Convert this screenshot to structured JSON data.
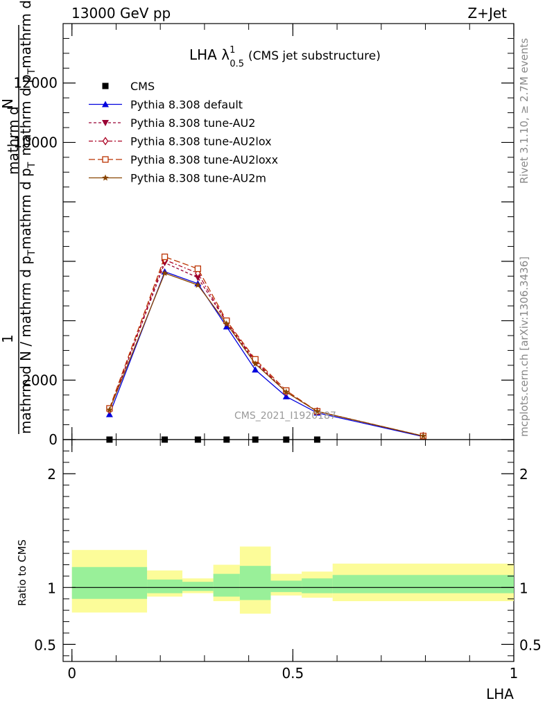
{
  "header": {
    "left": "13000 GeV pp",
    "right": "Z+Jet"
  },
  "side_labels": {
    "rivet": "Rivet 3.1.10, ≥ 2.7M events",
    "mcplots": "mcplots.cern.ch [arXiv:1306.3436]"
  },
  "watermark": "CMS_2021_I1920187",
  "title": {
    "main": "LHA λ",
    "sup": "1",
    "sub": "0.5",
    "paren": "(CMS jet substructure)"
  },
  "ylabel": {
    "one": "1",
    "numerator_a": "mathrm d",
    "numerator_b": "N",
    "left_col_1": "mathrm d N / mathrm d p",
    "left_col_1_sub": "T",
    "left_col_2": "mathrm d p",
    "left_col_2_sub": "T",
    "right_col": "mathrm d p",
    "right_col_sub": "T",
    "right_col_tail": "mathrm d \\lambda"
  },
  "ratio_ylabel": "Ratio to CMS",
  "xlabel": "LHA",
  "colors": {
    "default": "#0000dd",
    "au2": "#990033",
    "au2lox": "#aa0022",
    "au2loxx": "#bb3300",
    "au2m": "#884400",
    "band_inner": "#99f099",
    "band_outer": "#fcfc99"
  },
  "chart_data": [
    {
      "type": "line",
      "panel": "main",
      "x_ticks": [
        0,
        0.5,
        1
      ],
      "y_ticks": [
        0,
        2000,
        4000,
        6000,
        8000,
        10000,
        12000
      ],
      "y_tick_labels": [
        "0",
        "2000",
        "",
        "",
        "",
        "10000",
        "12000"
      ],
      "xlim": [
        -0.02,
        1.0
      ],
      "ylim": [
        0,
        14000
      ],
      "legend_position": "top-left",
      "series": [
        {
          "name": "CMS",
          "marker": "square",
          "color": "#000000",
          "x": [
            0.085,
            0.21,
            0.285,
            0.35,
            0.415,
            0.485,
            0.555
          ],
          "y": [
            0,
            0,
            0,
            0,
            0,
            0,
            0
          ]
        },
        {
          "name": "Pythia 8.308 default",
          "marker": "triangle-up",
          "style": "solid",
          "color": "#0000dd",
          "x": [
            0.085,
            0.21,
            0.285,
            0.35,
            0.415,
            0.485,
            0.555,
            0.795
          ],
          "y": [
            850,
            5650,
            5250,
            3800,
            2350,
            1450,
            900,
            100
          ]
        },
        {
          "name": "Pythia 8.308 tune-AU2",
          "marker": "triangle-down",
          "style": "dashed",
          "color": "#990033",
          "x": [
            0.085,
            0.21,
            0.285,
            0.35,
            0.415,
            0.485,
            0.555,
            0.795
          ],
          "y": [
            1000,
            5950,
            5450,
            3950,
            2600,
            1600,
            950,
            120
          ]
        },
        {
          "name": "Pythia 8.308 tune-AU2lox",
          "marker": "diamond-open",
          "style": "dashdot",
          "color": "#aa0022",
          "x": [
            0.085,
            0.21,
            0.285,
            0.35,
            0.415,
            0.485,
            0.555,
            0.795
          ],
          "y": [
            1000,
            6050,
            5600,
            3950,
            2650,
            1600,
            950,
            120
          ]
        },
        {
          "name": "Pythia 8.308 tune-AU2loxx",
          "marker": "square-open",
          "style": "longdash",
          "color": "#bb3300",
          "x": [
            0.085,
            0.21,
            0.285,
            0.35,
            0.415,
            0.485,
            0.555,
            0.795
          ],
          "y": [
            1050,
            6150,
            5750,
            4000,
            2700,
            1650,
            950,
            120
          ]
        },
        {
          "name": "Pythia 8.308 tune-AU2m",
          "marker": "star",
          "style": "solid",
          "color": "#884400",
          "x": [
            0.085,
            0.21,
            0.285,
            0.35,
            0.415,
            0.485,
            0.555,
            0.795
          ],
          "y": [
            1000,
            5600,
            5200,
            3900,
            2550,
            1600,
            950,
            120
          ]
        }
      ]
    },
    {
      "type": "area",
      "panel": "ratio",
      "title": "Ratio to CMS",
      "xlabel": "LHA",
      "x_ticks": [
        0,
        0.5,
        1
      ],
      "y_ticks": [
        0.5,
        1,
        2
      ],
      "xlim": [
        -0.02,
        1.0
      ],
      "ylim": [
        0.35,
        2.3
      ],
      "reference_line": 1,
      "bins": [
        {
          "lo": 0.0,
          "hi": 0.17,
          "inner": [
            0.9,
            1.18
          ],
          "outer": [
            0.78,
            1.33
          ]
        },
        {
          "lo": 0.17,
          "hi": 0.25,
          "inner": [
            0.95,
            1.07
          ],
          "outer": [
            0.92,
            1.15
          ]
        },
        {
          "lo": 0.25,
          "hi": 0.32,
          "inner": [
            0.97,
            1.05
          ],
          "outer": [
            0.95,
            1.08
          ]
        },
        {
          "lo": 0.32,
          "hi": 0.38,
          "inner": [
            0.92,
            1.12
          ],
          "outer": [
            0.88,
            1.2
          ]
        },
        {
          "lo": 0.38,
          "hi": 0.45,
          "inner": [
            0.89,
            1.19
          ],
          "outer": [
            0.77,
            1.36
          ]
        },
        {
          "lo": 0.45,
          "hi": 0.52,
          "inner": [
            0.96,
            1.06
          ],
          "outer": [
            0.93,
            1.12
          ]
        },
        {
          "lo": 0.52,
          "hi": 0.59,
          "inner": [
            0.95,
            1.08
          ],
          "outer": [
            0.91,
            1.14
          ]
        },
        {
          "lo": 0.59,
          "hi": 1.0,
          "inner": [
            0.95,
            1.11
          ],
          "outer": [
            0.88,
            1.21
          ]
        }
      ]
    }
  ]
}
